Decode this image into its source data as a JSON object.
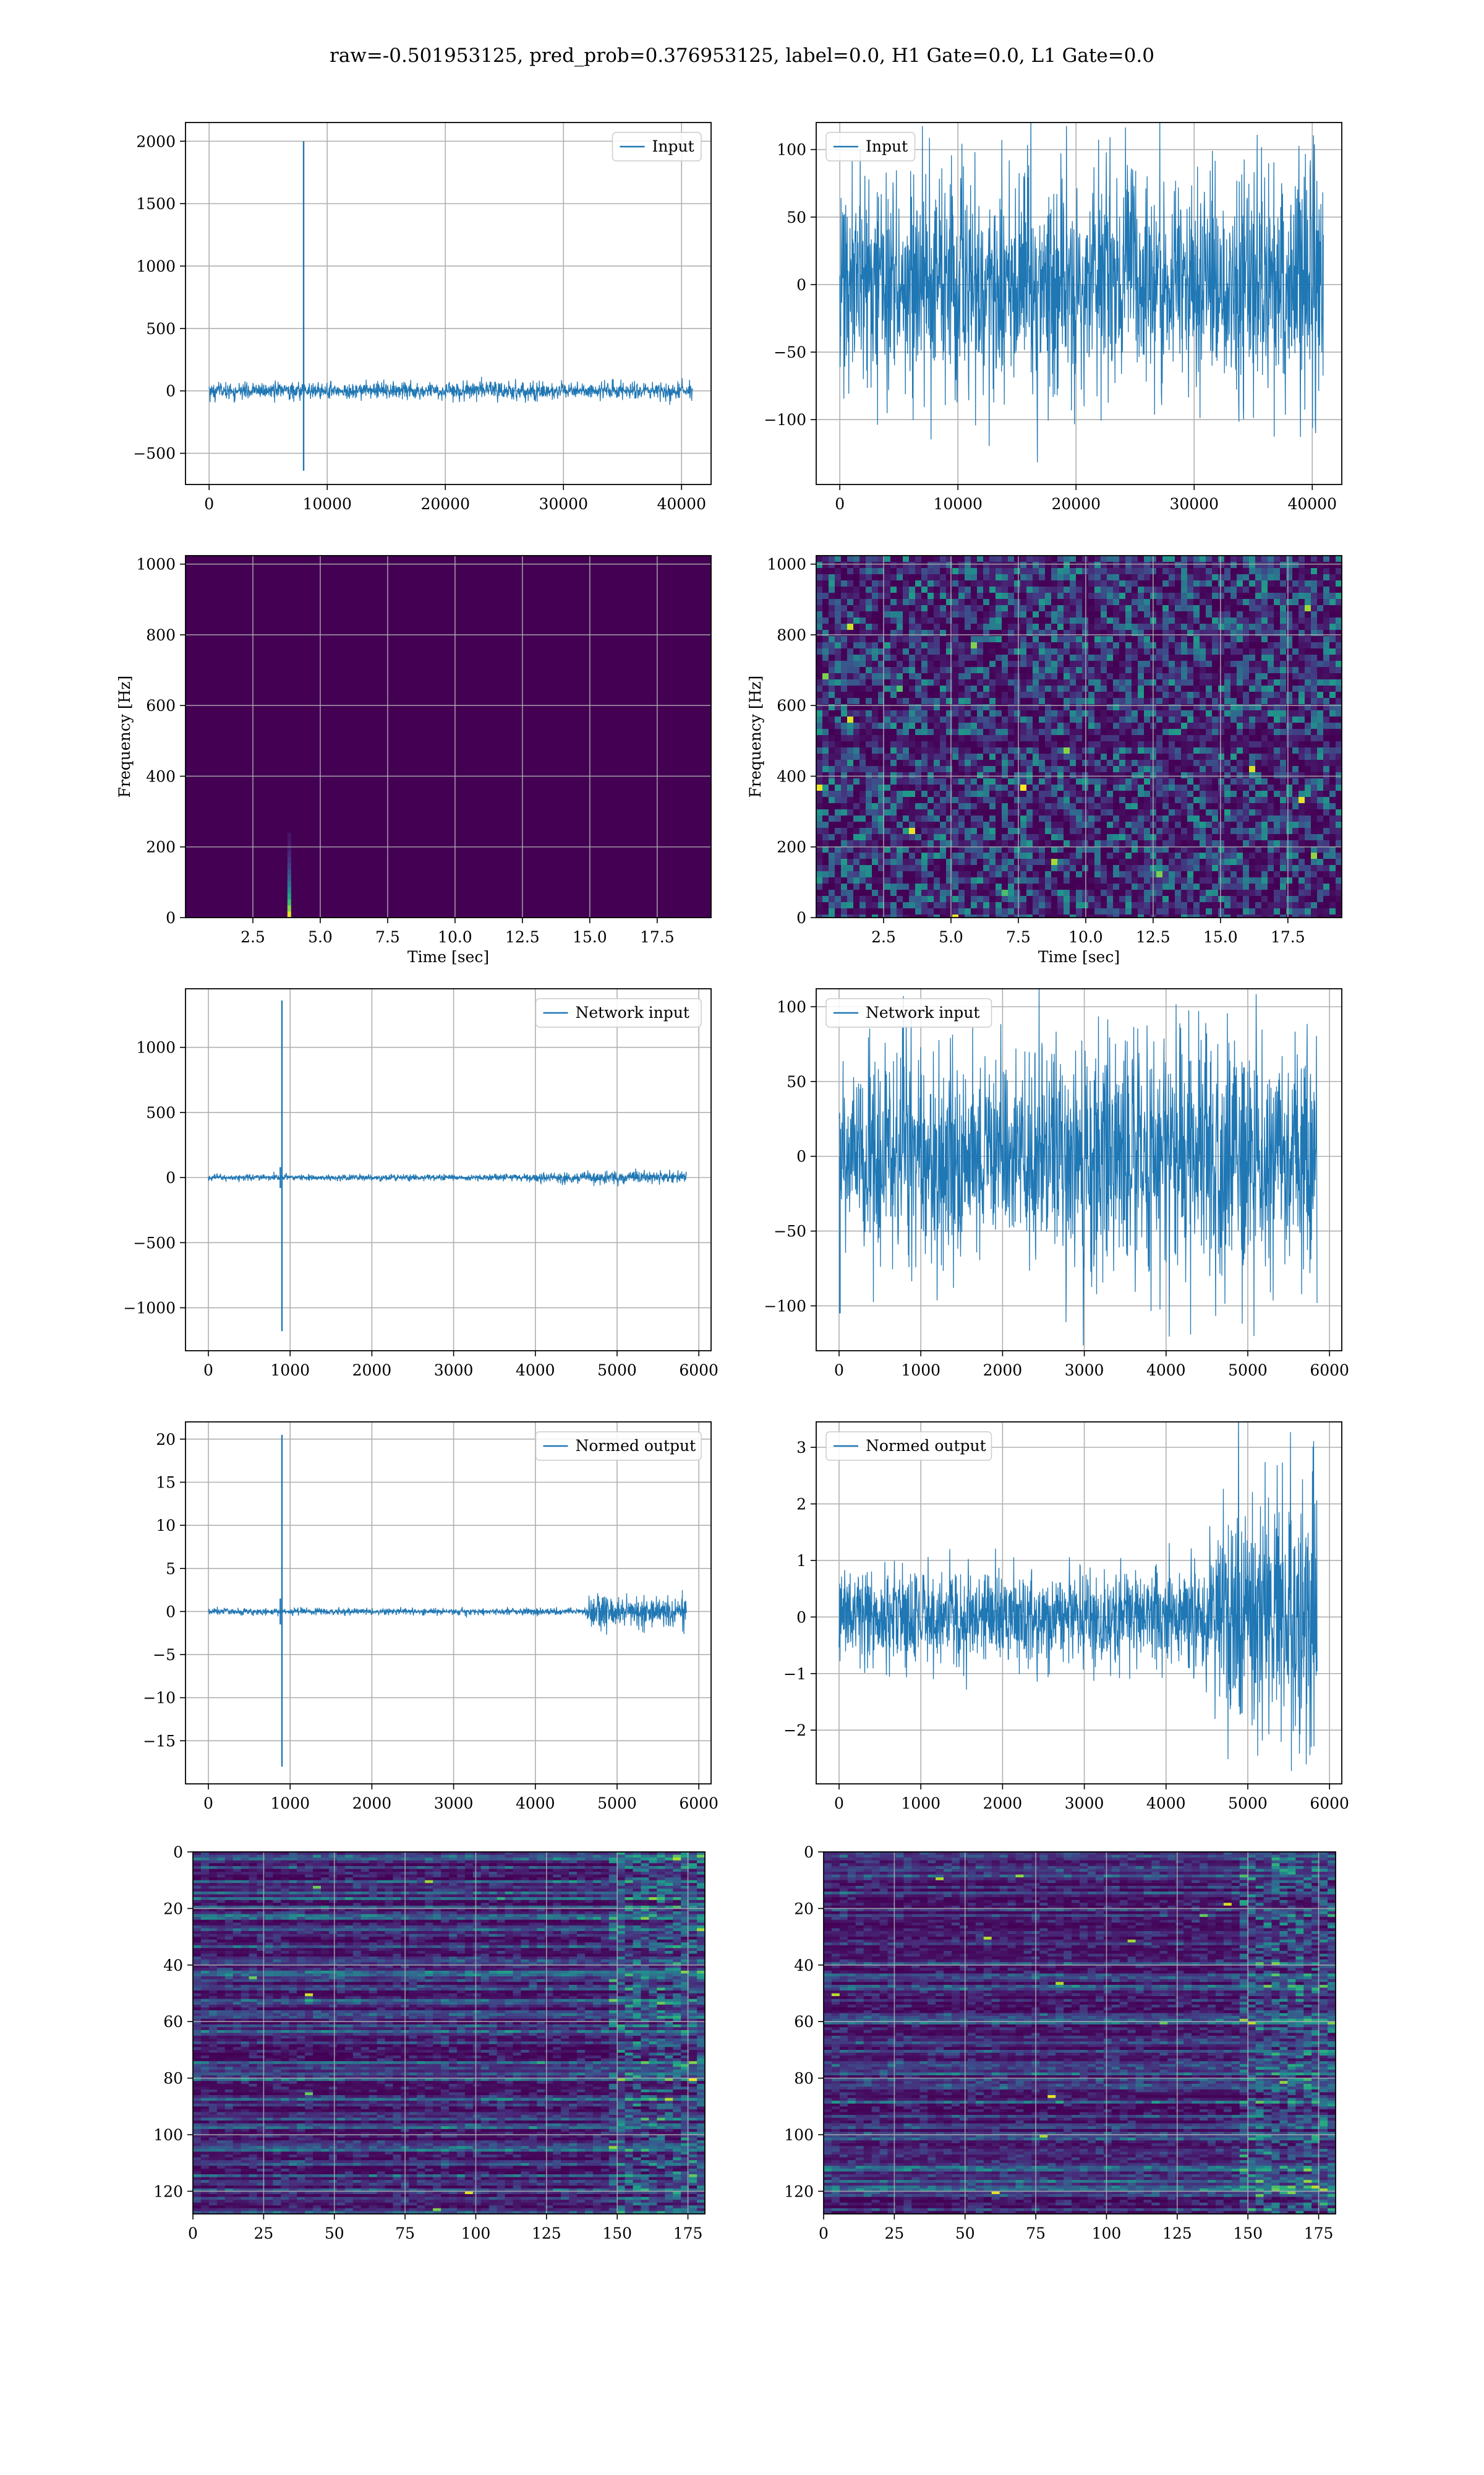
{
  "figure": {
    "title": "raw=-0.501953125, pred_prob=0.376953125, label=0.0, H1 Gate=0.0, L1 Gate=0.0"
  },
  "colors": {
    "line": "#1f77b4",
    "grid": "#b0b0b0",
    "viridis": [
      "#440154",
      "#482878",
      "#3e4989",
      "#31688e",
      "#26828e",
      "#1f9e89",
      "#35b779",
      "#6ece58",
      "#b5de2b",
      "#fde725"
    ]
  },
  "chart_data": [
    {
      "id": "input-h1",
      "type": "line",
      "legend": "Input",
      "legend_loc": "upper-right",
      "xlim": [
        -2000,
        42500
      ],
      "ylim": [
        -750,
        2150
      ],
      "xticks": [
        0,
        10000,
        20000,
        30000,
        40000
      ],
      "xticklabels": [
        "0",
        "10000",
        "20000",
        "30000",
        "40000"
      ],
      "yticks": [
        -500,
        0,
        500,
        1000,
        1500,
        2000
      ],
      "yticklabels": [
        "−500",
        "0",
        "500",
        "1000",
        "1500",
        "2000"
      ],
      "x_range": [
        0,
        40960
      ],
      "envelope": [
        [
          0,
          90
        ],
        [
          10000,
          90
        ],
        [
          20000,
          90
        ],
        [
          30000,
          90
        ],
        [
          40960,
          90
        ]
      ],
      "spikes": [
        {
          "x": 8000,
          "ymin": -640,
          "ymax": 2000
        }
      ],
      "grid": true
    },
    {
      "id": "input-l1",
      "type": "line",
      "legend": "Input",
      "legend_loc": "upper-left",
      "xlim": [
        -2000,
        42500
      ],
      "ylim": [
        -148,
        120
      ],
      "xticks": [
        0,
        10000,
        20000,
        30000,
        40000
      ],
      "xticklabels": [
        "0",
        "10000",
        "20000",
        "30000",
        "40000"
      ],
      "yticks": [
        -100,
        -50,
        0,
        50,
        100
      ],
      "yticklabels": [
        "−100",
        "−50",
        "0",
        "50",
        "100"
      ],
      "x_range": [
        0,
        40960
      ],
      "envelope": [
        [
          0,
          100
        ],
        [
          10000,
          105
        ],
        [
          20000,
          110
        ],
        [
          30000,
          105
        ],
        [
          40960,
          125
        ]
      ],
      "spikes": [],
      "grid": true
    },
    {
      "id": "spec-h1",
      "type": "heatmap",
      "xlabel": "Time [sec]",
      "ylabel": "Frequency [Hz]",
      "xlim": [
        0,
        19.5
      ],
      "ylim": [
        0,
        1024
      ],
      "xticks": [
        2.5,
        5,
        7.5,
        10,
        12.5,
        15,
        17.5
      ],
      "xticklabels": [
        "2.5",
        "5.0",
        "7.5",
        "10.0",
        "12.5",
        "15.0",
        "17.5"
      ],
      "yticks": [
        0,
        200,
        400,
        600,
        800,
        1000
      ],
      "yticklabels": [
        "0",
        "200",
        "400",
        "600",
        "800",
        "1000"
      ],
      "pattern": "glitch",
      "glitch": {
        "t": 3.85,
        "fmax": 240
      },
      "grid": true
    },
    {
      "id": "spec-l1",
      "type": "heatmap",
      "xlabel": "Time [sec]",
      "ylabel": "Frequency [Hz]",
      "xlim": [
        0,
        19.5
      ],
      "ylim": [
        0,
        1024
      ],
      "xticks": [
        2.5,
        5,
        7.5,
        10,
        12.5,
        15,
        17.5
      ],
      "xticklabels": [
        "2.5",
        "5.0",
        "7.5",
        "10.0",
        "12.5",
        "15.0",
        "17.5"
      ],
      "yticks": [
        0,
        200,
        400,
        600,
        800,
        1000
      ],
      "yticklabels": [
        "0",
        "200",
        "400",
        "600",
        "800",
        "1000"
      ],
      "pattern": "noise",
      "grid": true
    },
    {
      "id": "netin-h1",
      "type": "line",
      "legend": "Network input",
      "legend_loc": "upper-right",
      "xlim": [
        -280,
        6150
      ],
      "ylim": [
        -1330,
        1450
      ],
      "xticks": [
        0,
        1000,
        2000,
        3000,
        4000,
        5000,
        6000
      ],
      "xticklabels": [
        "0",
        "1000",
        "2000",
        "3000",
        "4000",
        "5000",
        "6000"
      ],
      "yticks": [
        -1000,
        -500,
        0,
        500,
        1000
      ],
      "yticklabels": [
        "−1000",
        "−500",
        "0",
        "500",
        "1000"
      ],
      "x_range": [
        0,
        5850
      ],
      "envelope": [
        [
          0,
          30
        ],
        [
          3500,
          30
        ],
        [
          4200,
          45
        ],
        [
          4700,
          60
        ],
        [
          5850,
          60
        ]
      ],
      "spikes": [
        {
          "x": 900,
          "ymin": -1180,
          "ymax": 1360
        },
        {
          "x": 880,
          "ymin": -80,
          "ymax": 80
        }
      ],
      "grid": true
    },
    {
      "id": "netin-l1",
      "type": "line",
      "legend": "Network input",
      "legend_loc": "upper-left",
      "xlim": [
        -280,
        6150
      ],
      "ylim": [
        -130,
        112
      ],
      "xticks": [
        0,
        1000,
        2000,
        3000,
        4000,
        5000,
        6000
      ],
      "xticklabels": [
        "0",
        "1000",
        "2000",
        "3000",
        "4000",
        "5000",
        "6000"
      ],
      "yticks": [
        -100,
        -50,
        0,
        50,
        100
      ],
      "yticklabels": [
        "−100",
        "−50",
        "0",
        "50",
        "100"
      ],
      "x_range": [
        0,
        5850
      ],
      "envelope": [
        [
          0,
          85
        ],
        [
          2000,
          90
        ],
        [
          4000,
          100
        ],
        [
          5850,
          105
        ]
      ],
      "spikes": [
        {
          "x": 10,
          "ymin": -105,
          "ymax": 0
        }
      ],
      "grid": true
    },
    {
      "id": "norm-h1",
      "type": "line",
      "legend": "Normed output",
      "legend_loc": "upper-right",
      "xlim": [
        -280,
        6150
      ],
      "ylim": [
        -20,
        22
      ],
      "xticks": [
        0,
        1000,
        2000,
        3000,
        4000,
        5000,
        6000
      ],
      "xticklabels": [
        "0",
        "1000",
        "2000",
        "3000",
        "4000",
        "5000",
        "6000"
      ],
      "yticks": [
        -15,
        -10,
        -5,
        0,
        5,
        10,
        15,
        20
      ],
      "yticklabels": [
        "−15",
        "−10",
        "−5",
        "0",
        "5",
        "10",
        "15",
        "20"
      ],
      "x_range": [
        0,
        5850
      ],
      "envelope": [
        [
          0,
          0.5
        ],
        [
          4600,
          0.5
        ],
        [
          4700,
          2.5
        ],
        [
          5850,
          2.5
        ]
      ],
      "spikes": [
        {
          "x": 900,
          "ymin": -18,
          "ymax": 20.5
        },
        {
          "x": 880,
          "ymin": -1.5,
          "ymax": 1.5
        }
      ],
      "grid": true
    },
    {
      "id": "norm-l1",
      "type": "line",
      "legend": "Normed output",
      "legend_loc": "upper-left",
      "xlim": [
        -280,
        6150
      ],
      "ylim": [
        -2.95,
        3.45
      ],
      "xticks": [
        0,
        1000,
        2000,
        3000,
        4000,
        5000,
        6000
      ],
      "xticklabels": [
        "0",
        "1000",
        "2000",
        "3000",
        "4000",
        "5000",
        "6000"
      ],
      "yticks": [
        -2,
        -1,
        0,
        1,
        2,
        3
      ],
      "yticklabels": [
        "−2",
        "−1",
        "0",
        "1",
        "2",
        "3"
      ],
      "x_range": [
        0,
        5850
      ],
      "envelope": [
        [
          0,
          1.0
        ],
        [
          2000,
          1.1
        ],
        [
          4500,
          1.2
        ],
        [
          4650,
          2.6
        ],
        [
          5850,
          3.2
        ]
      ],
      "spikes": [],
      "grid": true
    },
    {
      "id": "feat-h1",
      "type": "heatmap",
      "xlim": [
        0,
        181
      ],
      "ylim": [
        128,
        0
      ],
      "xticks": [
        0,
        25,
        50,
        75,
        100,
        125,
        150,
        175
      ],
      "xticklabels": [
        "0",
        "25",
        "50",
        "75",
        "100",
        "125",
        "150",
        "175"
      ],
      "yticks": [
        0,
        20,
        40,
        60,
        80,
        100,
        120
      ],
      "yticklabels": [
        "0",
        "20",
        "40",
        "60",
        "80",
        "100",
        "120"
      ],
      "pattern": "features",
      "grid": true
    },
    {
      "id": "feat-l1",
      "type": "heatmap",
      "xlim": [
        0,
        181
      ],
      "ylim": [
        128,
        0
      ],
      "xticks": [
        0,
        25,
        50,
        75,
        100,
        125,
        150,
        175
      ],
      "xticklabels": [
        "0",
        "25",
        "50",
        "75",
        "100",
        "125",
        "150",
        "175"
      ],
      "yticks": [
        0,
        20,
        40,
        60,
        80,
        100,
        120
      ],
      "yticklabels": [
        "0",
        "20",
        "40",
        "60",
        "80",
        "100",
        "120"
      ],
      "pattern": "features",
      "grid": true
    }
  ]
}
